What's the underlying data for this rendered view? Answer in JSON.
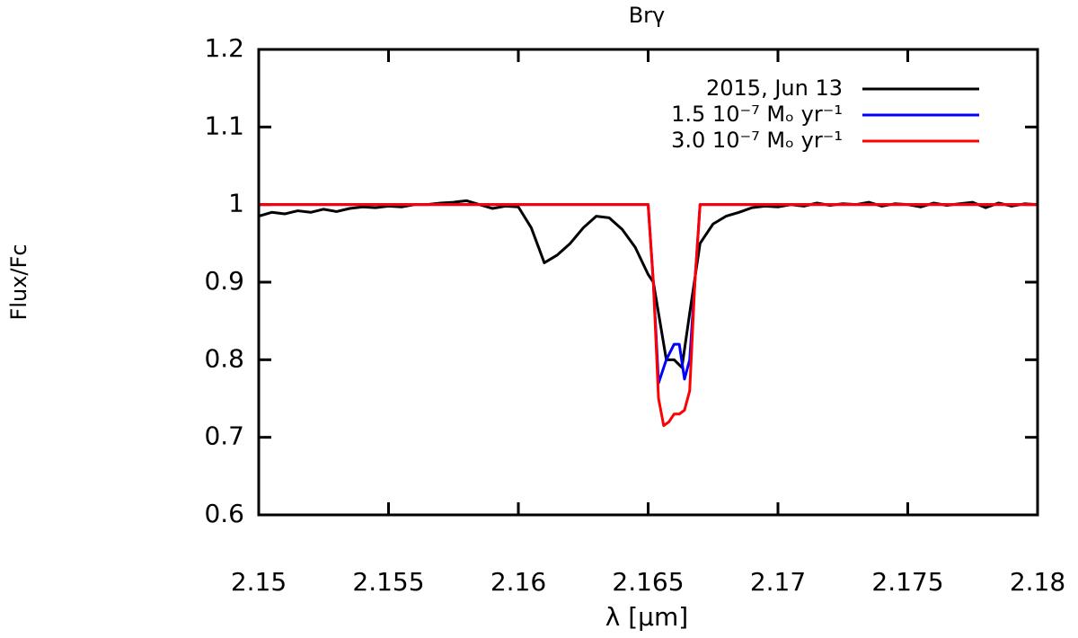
{
  "chart_data": {
    "type": "line",
    "title": "Brγ",
    "x_label": "λ [μm]",
    "y_label": "Flux/Fc",
    "xlim": [
      2.15,
      2.18
    ],
    "ylim": [
      0.6,
      1.2
    ],
    "xticks": [
      2.15,
      2.155,
      2.16,
      2.165,
      2.17,
      2.175,
      2.18
    ],
    "yticks": [
      0.6,
      0.7,
      0.8,
      0.9,
      1,
      1.1,
      1.2
    ],
    "grid": false,
    "legend": "upper right",
    "series": [
      {
        "name": "2015, Jun 13",
        "color": "#000000",
        "x": [
          2.15,
          2.1505,
          2.151,
          2.1515,
          2.152,
          2.1525,
          2.153,
          2.1535,
          2.154,
          2.1545,
          2.155,
          2.1555,
          2.156,
          2.1565,
          2.157,
          2.1575,
          2.158,
          2.1585,
          2.159,
          2.1595,
          2.16,
          2.1605,
          2.161,
          2.1615,
          2.162,
          2.1625,
          2.163,
          2.1635,
          2.164,
          2.1645,
          2.165,
          2.1652,
          2.1654,
          2.1657,
          2.166,
          2.1663,
          2.1666,
          2.167,
          2.1675,
          2.168,
          2.1685,
          2.169,
          2.1695,
          2.17,
          2.1705,
          2.171,
          2.1715,
          2.172,
          2.1725,
          2.173,
          2.1735,
          2.174,
          2.1745,
          2.175,
          2.1755,
          2.176,
          2.1765,
          2.177,
          2.1775,
          2.178,
          2.1785,
          2.179,
          2.1795,
          2.18
        ],
        "values": [
          0.985,
          0.99,
          0.988,
          0.992,
          0.99,
          0.994,
          0.991,
          0.995,
          0.997,
          0.996,
          0.998,
          0.997,
          1.0,
          1.0,
          1.002,
          1.003,
          1.005,
          1.0,
          0.995,
          0.998,
          0.997,
          0.97,
          0.925,
          0.935,
          0.95,
          0.97,
          0.985,
          0.983,
          0.968,
          0.945,
          0.91,
          0.9,
          0.86,
          0.8,
          0.8,
          0.79,
          0.86,
          0.95,
          0.975,
          0.985,
          0.99,
          0.996,
          0.998,
          0.997,
          1.0,
          0.998,
          1.002,
          0.999,
          1.001,
          1.0,
          1.003,
          0.998,
          1.001,
          1.0,
          0.997,
          1.002,
          0.999,
          1.001,
          1.003,
          0.996,
          1.002,
          0.998,
          1.001,
          1.0
        ]
      },
      {
        "name": "1.5 10⁻⁷ Mₒ yr⁻¹",
        "color": "#0000ff",
        "x": [
          2.15,
          2.165,
          2.1652,
          2.1654,
          2.1657,
          2.166,
          2.1662,
          2.1664,
          2.1666,
          2.1668,
          2.167,
          2.18
        ],
        "values": [
          1.0,
          1.0,
          0.9,
          0.77,
          0.8,
          0.82,
          0.82,
          0.775,
          0.8,
          0.9,
          1.0,
          1.0
        ]
      },
      {
        "name": "3.0 10⁻⁷ Mₒ yr⁻¹",
        "color": "#ff0000",
        "x": [
          2.15,
          2.165,
          2.1652,
          2.1654,
          2.1656,
          2.1658,
          2.166,
          2.1662,
          2.1664,
          2.1666,
          2.1668,
          2.167,
          2.18
        ],
        "values": [
          1.0,
          1.0,
          0.9,
          0.75,
          0.715,
          0.72,
          0.73,
          0.73,
          0.735,
          0.76,
          0.9,
          1.0,
          1.0
        ]
      }
    ]
  }
}
